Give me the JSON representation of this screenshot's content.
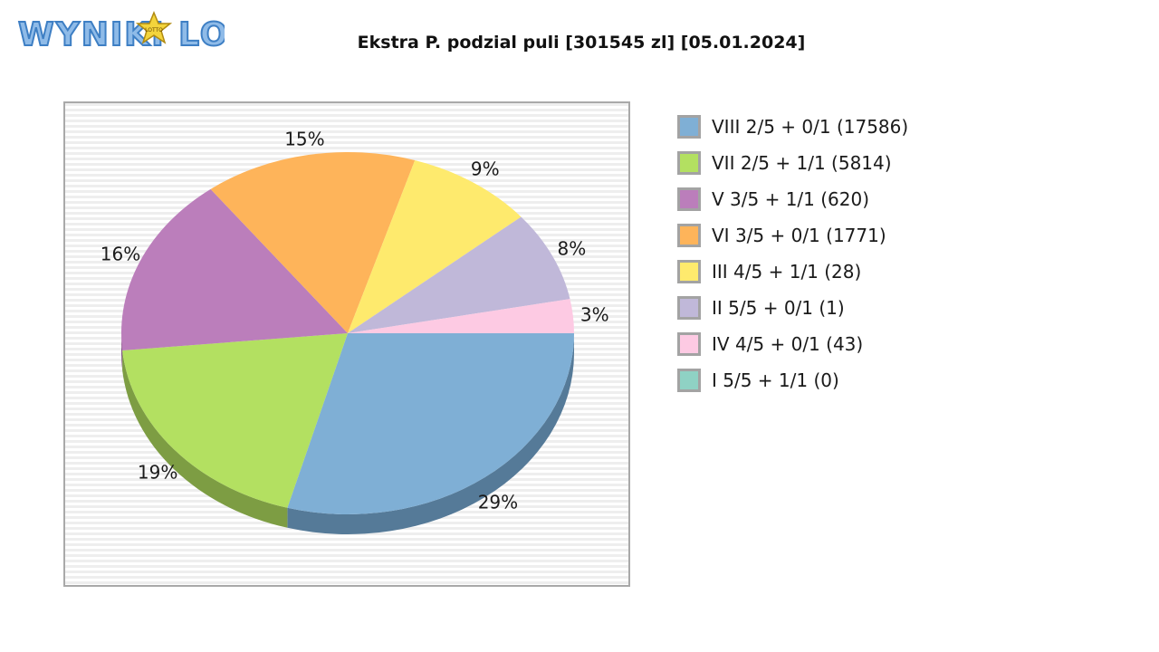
{
  "logo": {
    "text": "WYNIKI LOTTO",
    "star_text": "LOTTO"
  },
  "chart_data": {
    "type": "pie",
    "title": "Ekstra P. podzial puli [301545 zl] [05.01.2024]",
    "slices": [
      {
        "label": "VIII 2/5 + 0/1 (17586)",
        "value": 29,
        "value_label": "29%",
        "color": "#7fafd5",
        "shadow": "#557a98"
      },
      {
        "label": "VII 2/5 + 1/1 (5814)",
        "value": 19,
        "value_label": "19%",
        "color": "#b3e061",
        "shadow": "#7d9d43"
      },
      {
        "label": "V 3/5 + 1/1 (620)",
        "value": 16,
        "value_label": "16%",
        "color": "#bb7ebb",
        "shadow": "#835883"
      },
      {
        "label": "VI 3/5 + 0/1 (1771)",
        "value": 15,
        "value_label": "15%",
        "color": "#feb45a",
        "shadow": "#b27e3f"
      },
      {
        "label": "III 4/5 + 1/1 (28)",
        "value": 9,
        "value_label": "9%",
        "color": "#feea6d",
        "shadow": "#b2a44c"
      },
      {
        "label": "II 5/5 + 0/1 (1)",
        "value": 8,
        "value_label": "8%",
        "color": "#c0b8d9",
        "shadow": "#868198"
      },
      {
        "label": "IV 4/5 + 0/1 (43)",
        "value": 3,
        "value_label": "3%",
        "color": "#fdcae3",
        "shadow": "#b18d9f"
      },
      {
        "label": "I 5/5 + 1/1 (0)",
        "value": 0,
        "value_label": "",
        "color": "#8fd2c4",
        "shadow": "#649389"
      }
    ]
  }
}
